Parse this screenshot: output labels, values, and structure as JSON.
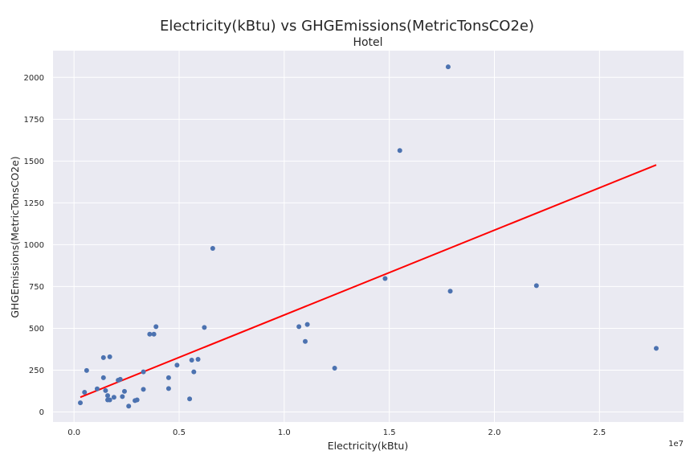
{
  "chart_data": {
    "type": "scatter",
    "title": "Electricity(kBtu) vs GHGEmissions(MetricTonsCO2e)",
    "subtitle": "Hotel",
    "xlabel": "Electricity(kBtu)",
    "ylabel": "GHGEmissions(MetricTonsCO2e)",
    "x_offset_label": "1e7",
    "xlim": [
      -0.1,
      2.9
    ],
    "ylim": [
      -60,
      2160
    ],
    "x_ticks": [
      0.0,
      0.5,
      1.0,
      1.5,
      2.0,
      2.5
    ],
    "x_tick_labels": [
      "0.0",
      "0.5",
      "1.0",
      "1.5",
      "2.0",
      "2.5"
    ],
    "y_ticks": [
      0,
      250,
      500,
      750,
      1000,
      1250,
      1500,
      1750,
      2000
    ],
    "y_tick_labels": [
      "0",
      "250",
      "500",
      "750",
      "1000",
      "1250",
      "1500",
      "1750",
      "2000"
    ],
    "grid": true,
    "colors": {
      "points": "#4c72b0",
      "trend": "#ff0000",
      "plot_bg": "#eaeaf2",
      "grid": "#ffffff"
    },
    "points": [
      {
        "x": 0.03,
        "y": 55
      },
      {
        "x": 0.05,
        "y": 118
      },
      {
        "x": 0.06,
        "y": 248
      },
      {
        "x": 0.11,
        "y": 138
      },
      {
        "x": 0.14,
        "y": 325
      },
      {
        "x": 0.14,
        "y": 205
      },
      {
        "x": 0.15,
        "y": 128
      },
      {
        "x": 0.16,
        "y": 72
      },
      {
        "x": 0.16,
        "y": 98
      },
      {
        "x": 0.17,
        "y": 330
      },
      {
        "x": 0.17,
        "y": 72
      },
      {
        "x": 0.19,
        "y": 88
      },
      {
        "x": 0.21,
        "y": 190
      },
      {
        "x": 0.22,
        "y": 195
      },
      {
        "x": 0.23,
        "y": 92
      },
      {
        "x": 0.24,
        "y": 123
      },
      {
        "x": 0.26,
        "y": 35
      },
      {
        "x": 0.29,
        "y": 68
      },
      {
        "x": 0.3,
        "y": 72
      },
      {
        "x": 0.33,
        "y": 135
      },
      {
        "x": 0.33,
        "y": 240
      },
      {
        "x": 0.36,
        "y": 465
      },
      {
        "x": 0.38,
        "y": 465
      },
      {
        "x": 0.39,
        "y": 510
      },
      {
        "x": 0.45,
        "y": 140
      },
      {
        "x": 0.45,
        "y": 205
      },
      {
        "x": 0.49,
        "y": 280
      },
      {
        "x": 0.55,
        "y": 78
      },
      {
        "x": 0.56,
        "y": 310
      },
      {
        "x": 0.57,
        "y": 240
      },
      {
        "x": 0.59,
        "y": 315
      },
      {
        "x": 0.62,
        "y": 505
      },
      {
        "x": 0.66,
        "y": 978
      },
      {
        "x": 1.07,
        "y": 510
      },
      {
        "x": 1.1,
        "y": 422
      },
      {
        "x": 1.11,
        "y": 523
      },
      {
        "x": 1.24,
        "y": 262
      },
      {
        "x": 1.48,
        "y": 798
      },
      {
        "x": 1.55,
        "y": 1563
      },
      {
        "x": 1.78,
        "y": 2063
      },
      {
        "x": 1.79,
        "y": 722
      },
      {
        "x": 2.2,
        "y": 755
      },
      {
        "x": 2.77,
        "y": 380
      }
    ],
    "trendline": {
      "x": [
        0.03,
        2.77
      ],
      "y": [
        88,
        1477
      ]
    }
  }
}
